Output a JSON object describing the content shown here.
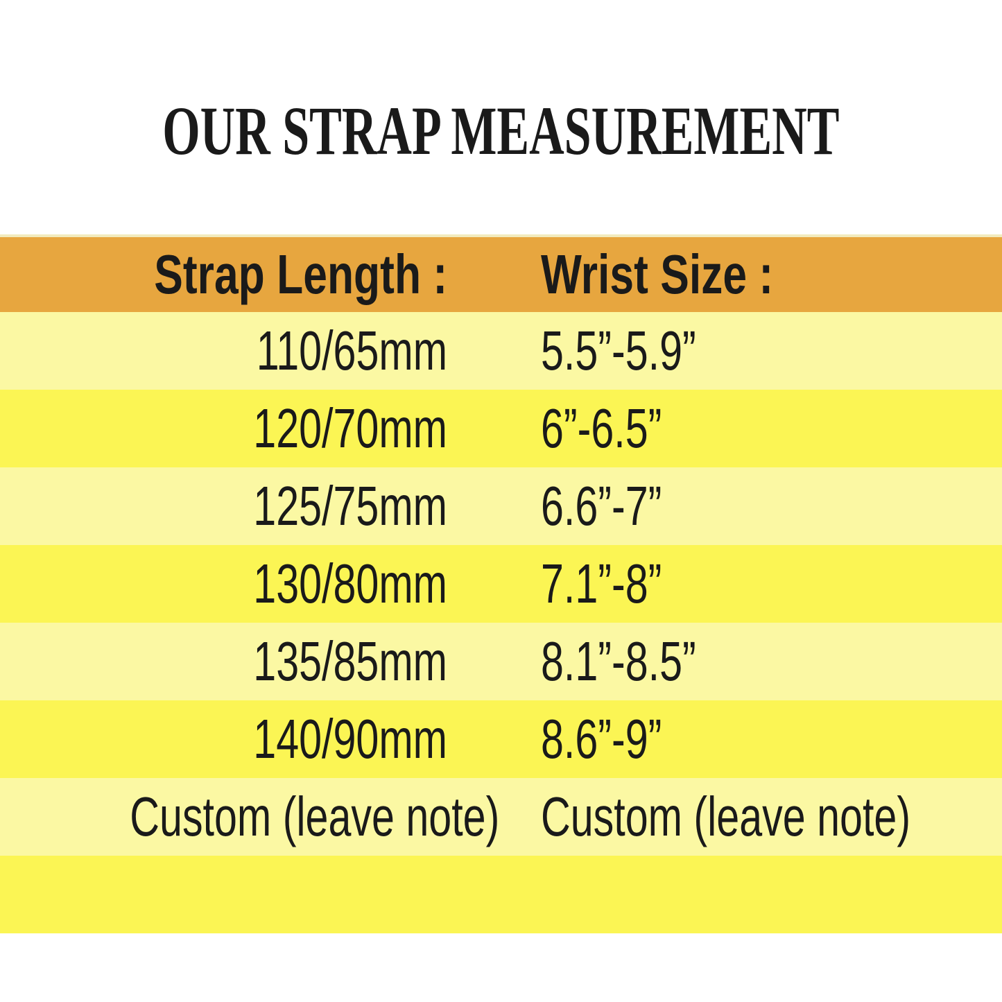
{
  "title": "OUR STRAP MEASUREMENT",
  "colors": {
    "header_bg": "#E7A63F",
    "row_light": "#FBF8A3",
    "row_bright": "#FBF554",
    "text": "#1A1A1A",
    "page_bg": "#FFFFFF"
  },
  "table": {
    "header": {
      "strap_length": "Strap Length :",
      "wrist_size": "Wrist Size :"
    },
    "rows": [
      {
        "strap_length": "110/65mm",
        "wrist_size": "5.5”-5.9”"
      },
      {
        "strap_length": "120/70mm",
        "wrist_size": "6”-6.5”"
      },
      {
        "strap_length": "125/75mm",
        "wrist_size": "6.6”-7”"
      },
      {
        "strap_length": "130/80mm",
        "wrist_size": "7.1”-8”"
      },
      {
        "strap_length": "135/85mm",
        "wrist_size": "8.1”-8.5”"
      },
      {
        "strap_length": "140/90mm",
        "wrist_size": "8.6”-9”"
      },
      {
        "strap_length": "Custom (leave note)",
        "wrist_size": "Custom (leave note)"
      },
      {
        "strap_length": "",
        "wrist_size": ""
      }
    ]
  },
  "chart_data": {
    "type": "table",
    "title": "OUR STRAP MEASUREMENT",
    "columns": [
      "Strap Length :",
      "Wrist Size :"
    ],
    "rows": [
      [
        "110/65mm",
        "5.5”-5.9”"
      ],
      [
        "120/70mm",
        "6”-6.5”"
      ],
      [
        "125/75mm",
        "6.6”-7”"
      ],
      [
        "130/80mm",
        "7.1”-8”"
      ],
      [
        "135/85mm",
        "8.1”-8.5”"
      ],
      [
        "140/90mm",
        "8.6”-9”"
      ],
      [
        "Custom (leave note)",
        "Custom (leave note)"
      ]
    ],
    "layout_hints": {
      "header_background": "#E7A63F",
      "alternating_row_colors": [
        "#FBF8A3",
        "#FBF554"
      ],
      "trailing_empty_row": true,
      "column1_alignment": "right",
      "column2_alignment": "left"
    }
  }
}
